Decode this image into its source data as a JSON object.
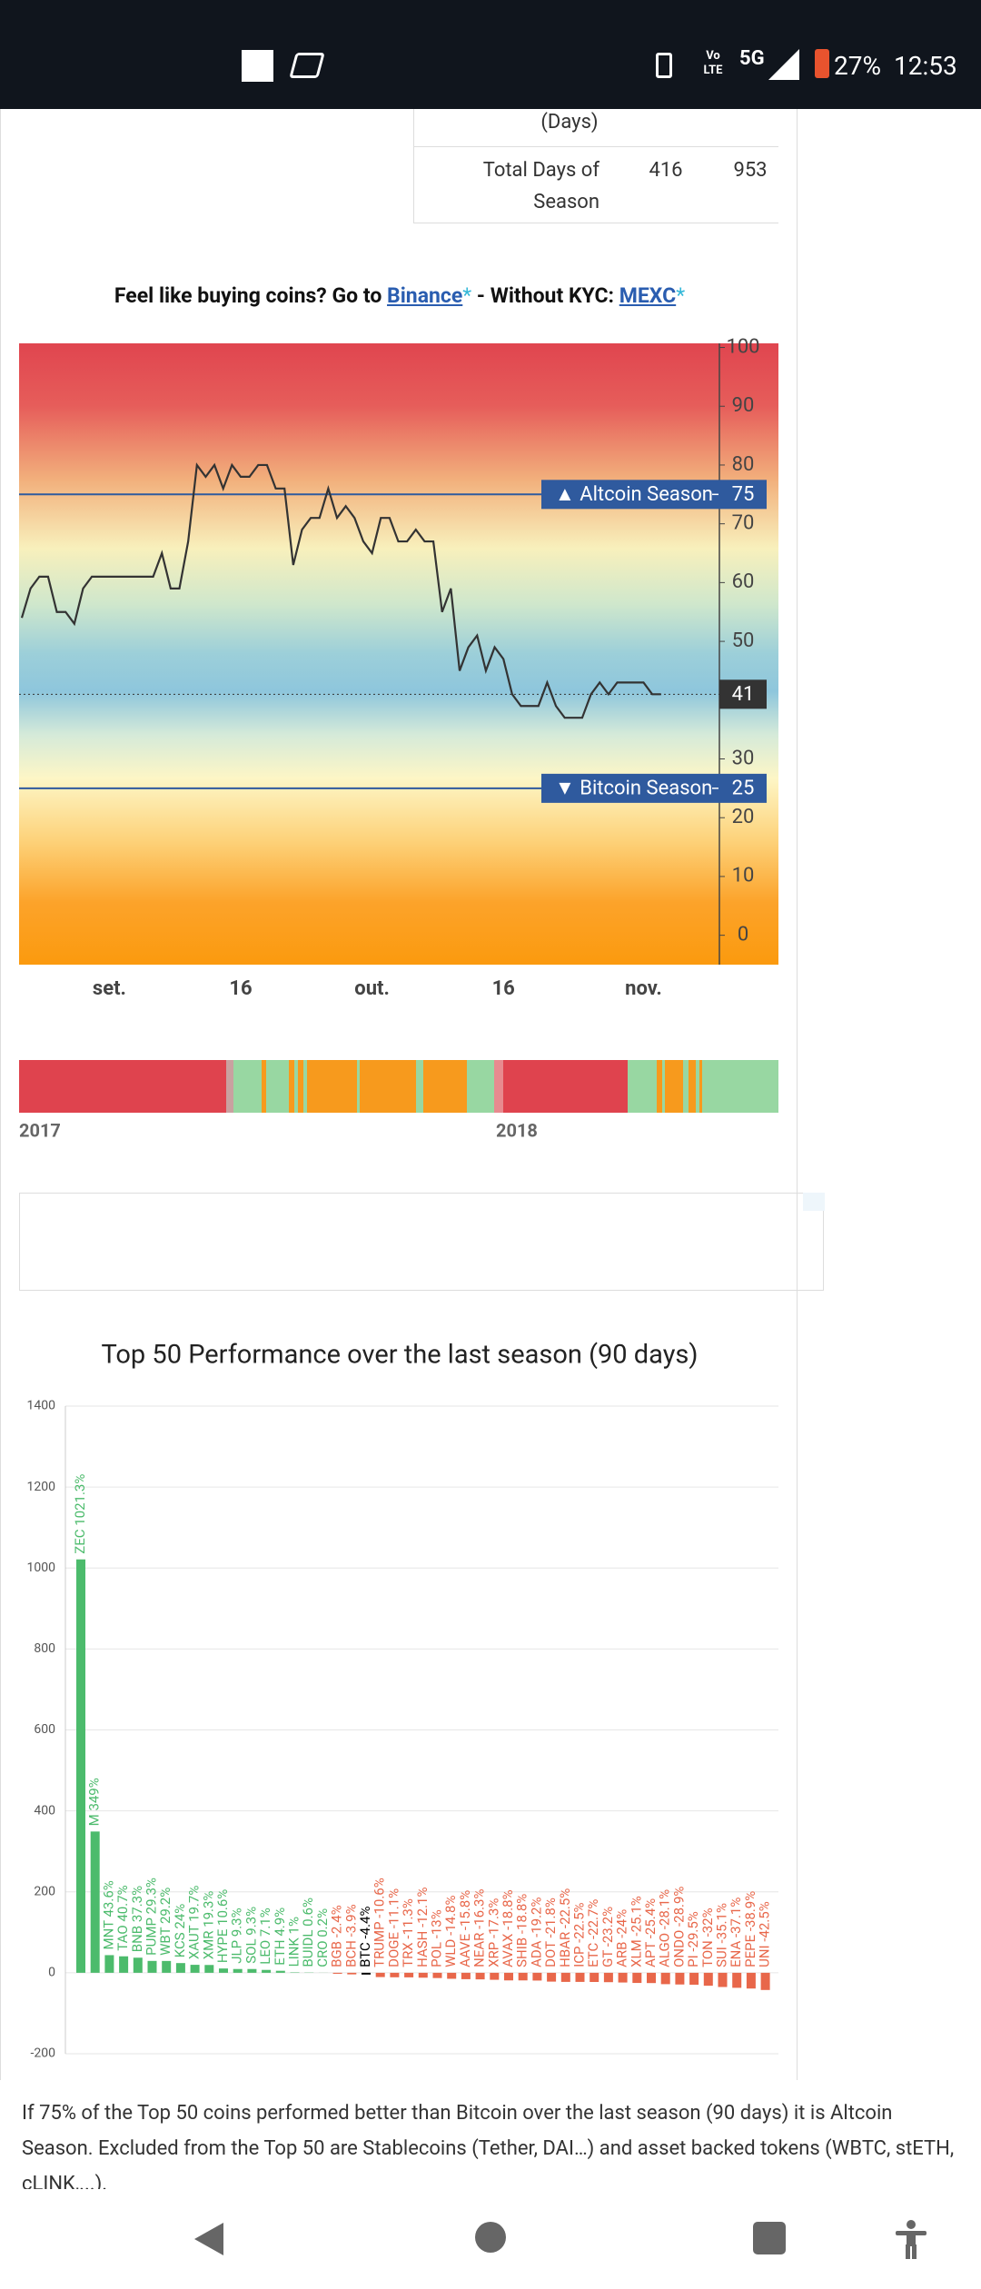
{
  "status_bar": {
    "volte": "Vo LTE",
    "network": "5G",
    "battery": "27%",
    "time": "12:53"
  },
  "table": {
    "rows": [
      [
        "(Days)"
      ],
      [
        "Total Days of Season",
        416,
        953
      ]
    ]
  },
  "promo": {
    "prefix": "Feel like buying coins? Go to ",
    "link1": "Binance",
    "star": "*",
    "middle": " - Without KYC: ",
    "link2": "MEXC"
  },
  "timeline": {
    "labels": [
      "2017",
      "2018"
    ]
  },
  "chart_data": [
    {
      "type": "line",
      "x": [
        "08-22",
        "08-23",
        "08-24",
        "08-25",
        "08-26",
        "08-27",
        "08-28",
        "08-29",
        "08-30",
        "08-31",
        "09-01",
        "09-02",
        "09-03",
        "09-04",
        "09-05",
        "09-06",
        "09-07",
        "09-08",
        "09-09",
        "09-10",
        "09-11",
        "09-12",
        "09-13",
        "09-14",
        "09-15",
        "09-16",
        "09-17",
        "09-18",
        "09-19",
        "09-20",
        "09-21",
        "09-22",
        "09-23",
        "09-24",
        "09-25",
        "09-26",
        "09-27",
        "09-28",
        "09-29",
        "09-30",
        "10-01",
        "10-02",
        "10-03",
        "10-04",
        "10-05",
        "10-06",
        "10-07",
        "10-08",
        "10-09",
        "10-10",
        "10-11",
        "10-12",
        "10-13",
        "10-14",
        "10-15",
        "10-16",
        "10-17",
        "10-18",
        "10-19",
        "10-20",
        "10-21",
        "10-22",
        "10-23",
        "10-24",
        "10-25",
        "10-26",
        "10-27",
        "10-28",
        "10-29",
        "10-30",
        "10-31",
        "11-01",
        "11-02",
        "11-03"
      ],
      "series": [
        {
          "color": "#333333",
          "values": [
            54,
            59,
            61,
            61,
            55,
            55,
            53,
            59,
            61,
            61,
            61,
            61,
            61,
            61,
            61,
            61,
            65,
            59,
            59,
            67,
            80,
            78,
            80,
            76,
            80,
            78,
            78,
            80,
            80,
            76,
            76,
            63,
            69,
            71,
            71,
            76,
            71,
            73,
            71,
            67,
            65,
            71,
            71,
            67,
            67,
            69,
            67,
            67,
            55,
            59,
            45,
            49,
            51,
            45,
            49,
            47,
            41,
            39,
            39,
            39,
            43,
            39,
            37,
            37,
            37,
            41,
            43,
            41,
            43,
            43,
            43,
            43,
            41,
            41
          ]
        }
      ],
      "ylim": [
        -5,
        100.7
      ],
      "yticks": [
        0,
        10,
        20,
        30,
        40,
        50,
        60,
        70,
        80,
        90,
        100
      ],
      "xticks": [
        {
          "value": "09-01",
          "label": "set."
        },
        {
          "value": "09-16",
          "label": "16"
        },
        {
          "value": "10-01",
          "label": "out."
        },
        {
          "value": "10-16",
          "label": "16"
        },
        {
          "value": "11-01",
          "label": "nov."
        }
      ],
      "annotations": [
        {
          "text": "▲ Altcoin Season",
          "value": 75,
          "color": "#2f5a9e"
        },
        {
          "text": "▼ Bitcoin Season",
          "value": 25,
          "color": "#2f5a9e"
        }
      ],
      "current": {
        "value": 41,
        "color": "#333333"
      }
    },
    {
      "type": "bar",
      "title": "Top 50 Performance over the last season (90 days)",
      "values": [
        1021.3,
        349,
        43.6,
        40.7,
        37.3,
        29.3,
        29.2,
        24,
        19.7,
        19.3,
        10.6,
        9.3,
        9.3,
        7.1,
        4.9,
        1,
        0.6,
        0.2,
        -2.4,
        -3.9,
        -4.4,
        -10.6,
        -11.1,
        -11.3,
        -12.1,
        -13,
        -14.8,
        -15.8,
        -16.3,
        -17.3,
        -18.8,
        -18.8,
        -19.2,
        -21.8,
        -22.5,
        -22.5,
        -22.7,
        -23.2,
        -24,
        -25.1,
        -25.4,
        -28.1,
        -28.9,
        -29.5,
        -32,
        -35.1,
        -37.1,
        -38.9,
        -42.5
      ],
      "value_labels": [
        "ZEC 1021.3%",
        "M 349%",
        "MNT 43.6%",
        "TAO 40.7%",
        "BNB 37.3%",
        "PUMP 29.3%",
        "WBT 29.2%",
        "KCS 24%",
        "XAUT 19.7%",
        "XMR 19.3%",
        "HYPE 10.6%",
        "JLP 9.3%",
        "SOL 9.3%",
        "LEO 7.1%",
        "ETH 4.9%",
        "LINK 1%",
        "BUIDL 0.6%",
        "CRO 0.2%",
        "BGB -2.4%",
        "BCH -3.9%",
        "BTC -4.4%",
        "TRUMP -10.6%",
        "DOGE -11.1%",
        "TRX -11.3%",
        "HASH -12.1%",
        "POL -13%",
        "WLD -14.8%",
        "AAVE -15.8%",
        "NEAR -16.3%",
        "XRP -17.3%",
        "AVAX -18.8%",
        "SHIB -18.8%",
        "ADA -19.2%",
        "DOT -21.8%",
        "HBAR -22.5%",
        "ICP -22.5%",
        "ETC -22.7%",
        "GT -23.2%",
        "ARB -24%",
        "XLM -25.1%",
        "APT -25.4%",
        "ALGO -28.1%",
        "ONDO -28.9%",
        "PI -29.5%",
        "TON -32%",
        "SUI -35.1%",
        "ENA -37.1%",
        "PEPE -38.9%",
        "UNI -42.5%"
      ],
      "colors": [
        "#4cbb6c",
        "#4cbb6c",
        "#4cbb6c",
        "#4cbb6c",
        "#4cbb6c",
        "#4cbb6c",
        "#4cbb6c",
        "#4cbb6c",
        "#4cbb6c",
        "#4cbb6c",
        "#4cbb6c",
        "#4cbb6c",
        "#4cbb6c",
        "#4cbb6c",
        "#4cbb6c",
        "#4cbb6c",
        "#4cbb6c",
        "#4cbb6c",
        "#e8674a",
        "#e8674a",
        "#000000",
        "#e8674a",
        "#e8674a",
        "#e8674a",
        "#e8674a",
        "#e8674a",
        "#e8674a",
        "#e8674a",
        "#e8674a",
        "#e8674a",
        "#e8674a",
        "#e8674a",
        "#e8674a",
        "#e8674a",
        "#e8674a",
        "#e8674a",
        "#e8674a",
        "#e8674a",
        "#e8674a",
        "#e8674a",
        "#e8674a",
        "#e8674a",
        "#e8674a",
        "#e8674a",
        "#e8674a",
        "#e8674a",
        "#e8674a",
        "#e8674a",
        "#e8674a"
      ],
      "ylim": [
        -200,
        1400
      ],
      "yticks": [
        -200,
        0,
        200,
        400,
        600,
        800,
        1000,
        1200,
        1400
      ],
      "grid": true
    }
  ],
  "paragraph": "If 75% of the Top 50 coins performed better than Bitcoin over the last season (90 days) it is Altcoin Season. Excluded from the Top 50 are Stablecoins (Tether, DAI…) and asset backed tokens (WBTC, stETH, cLINK,...)."
}
